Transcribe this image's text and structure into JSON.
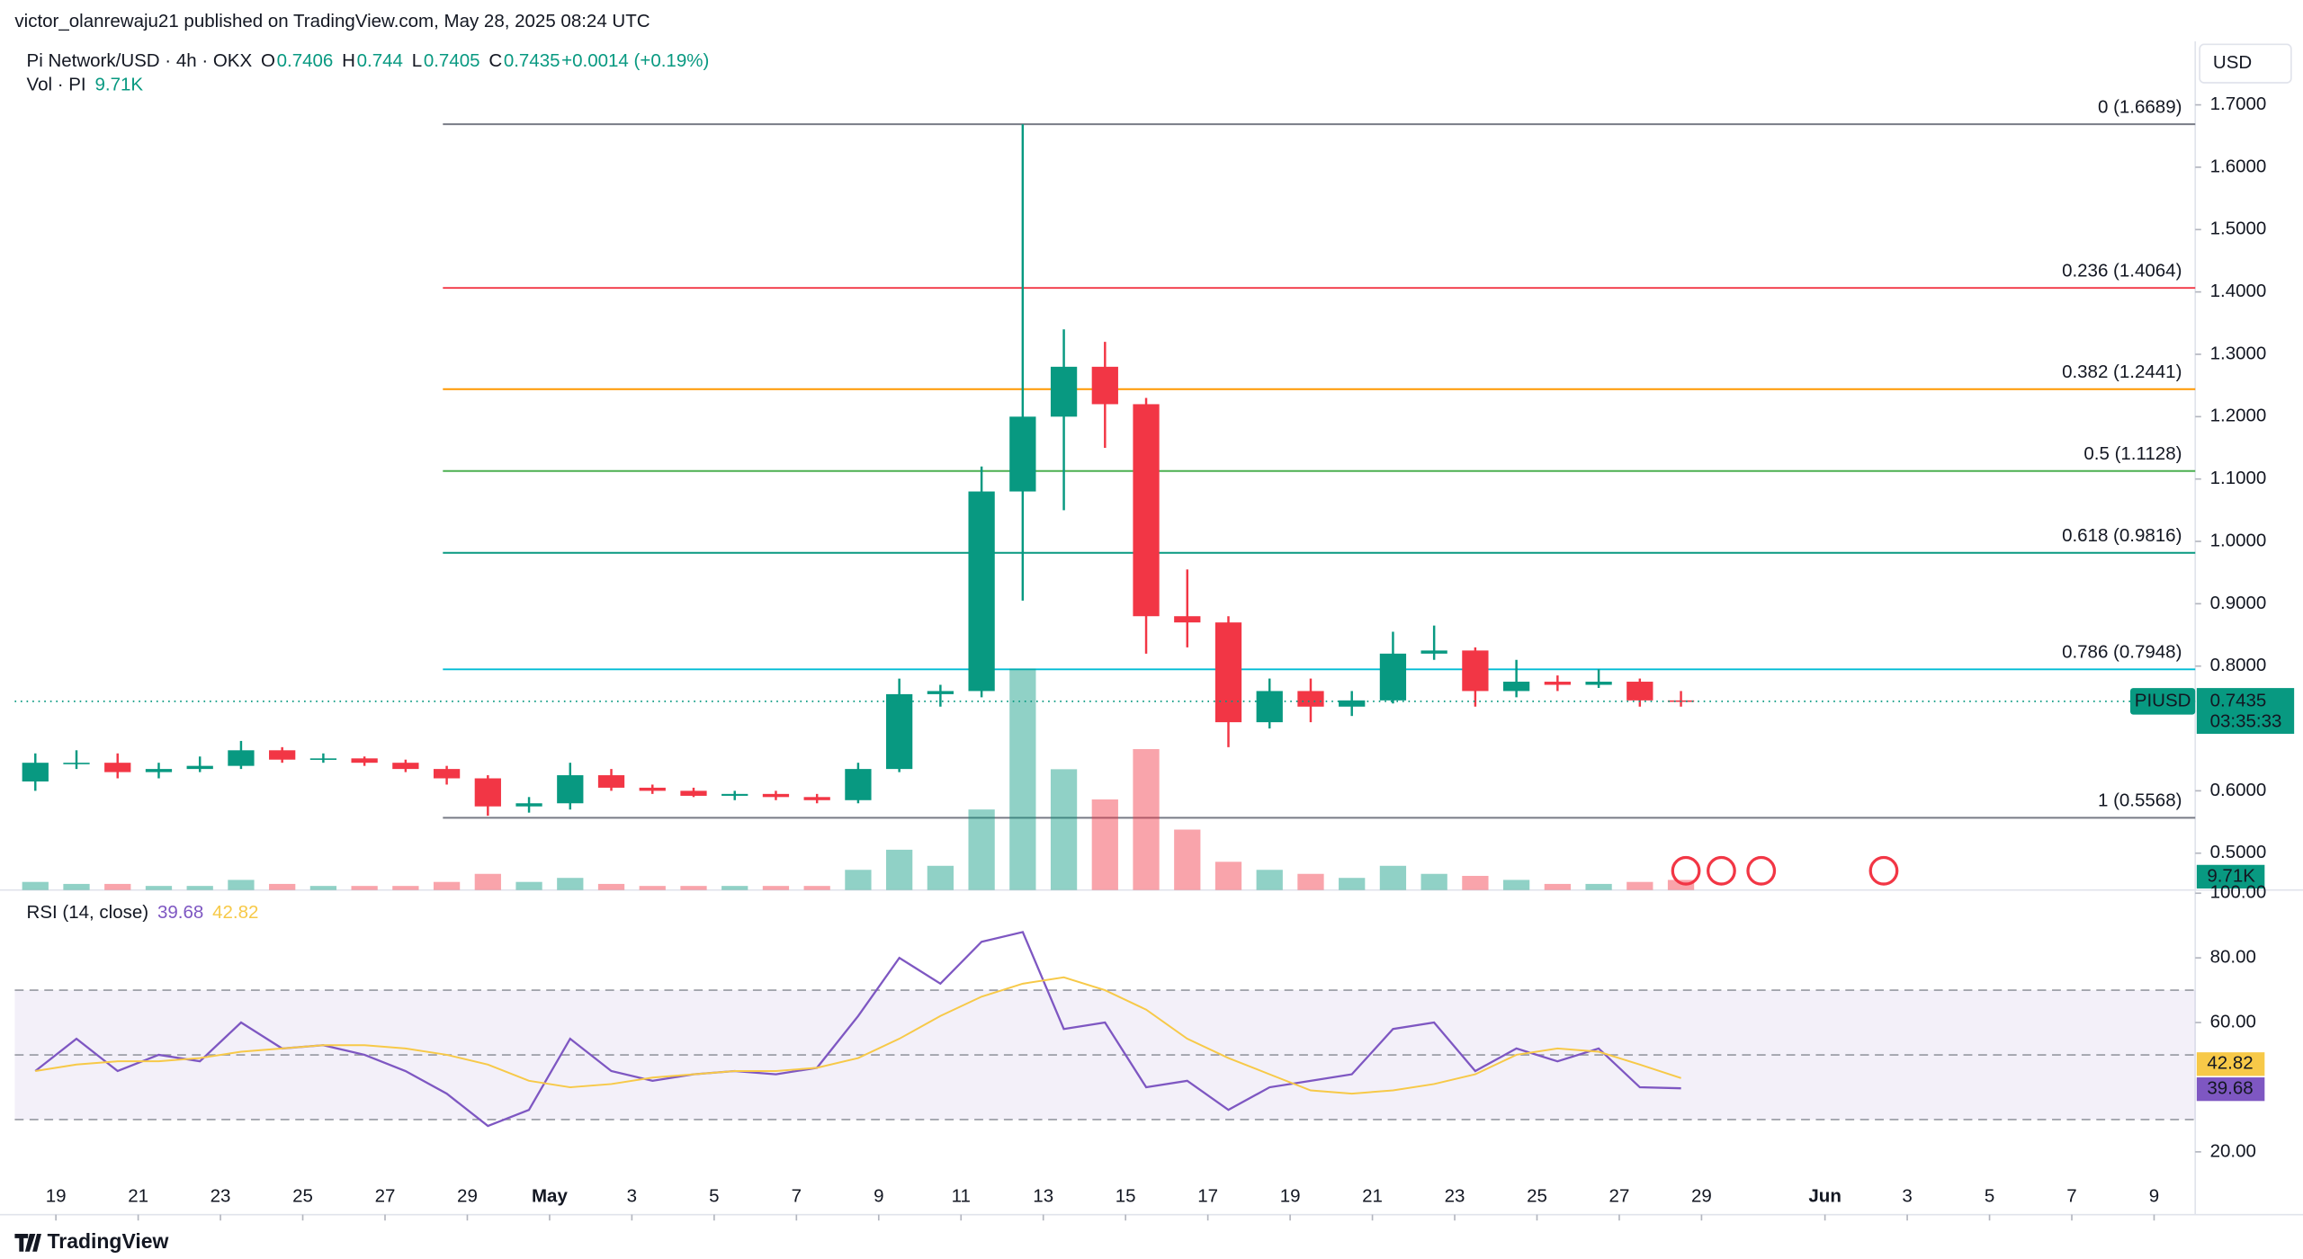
{
  "header": {
    "byline": "victor_olanrewaju21 published on TradingView.com, May 28, 2025 08:24 UTC",
    "currency": "USD",
    "brand": "TradingView"
  },
  "chart_data": [
    {
      "type": "candlestick",
      "legend": {
        "symbol": "Pi Network/USD · 4h · OKX",
        "open_label": "O",
        "open": 0.7406,
        "high_label": "H",
        "high": 0.744,
        "low_label": "L",
        "low": 0.7405,
        "close_label": "C",
        "close": 0.7435,
        "change": "+0.0014 (+0.19%)",
        "volume_label": "Vol · PI",
        "volume_value": "9.71K"
      },
      "x": [
        "2025-04-18",
        "2025-04-19",
        "2025-04-20",
        "2025-04-21",
        "2025-04-22",
        "2025-04-23",
        "2025-04-24",
        "2025-04-25",
        "2025-04-26",
        "2025-04-27",
        "2025-04-28",
        "2025-04-29",
        "2025-04-30",
        "2025-05-01",
        "2025-05-02",
        "2025-05-03",
        "2025-05-04",
        "2025-05-05",
        "2025-05-06",
        "2025-05-07",
        "2025-05-08",
        "2025-05-09",
        "2025-05-10",
        "2025-05-11",
        "2025-05-12",
        "2025-05-13",
        "2025-05-14",
        "2025-05-15",
        "2025-05-16",
        "2025-05-17",
        "2025-05-18",
        "2025-05-19",
        "2025-05-20",
        "2025-05-21",
        "2025-05-22",
        "2025-05-23",
        "2025-05-24",
        "2025-05-25",
        "2025-05-26",
        "2025-05-27",
        "2025-05-28"
      ],
      "open": [
        0.615,
        0.645,
        0.645,
        0.63,
        0.635,
        0.64,
        0.665,
        0.65,
        0.652,
        0.645,
        0.635,
        0.62,
        0.575,
        0.58,
        0.625,
        0.605,
        0.6,
        0.592,
        0.595,
        0.59,
        0.585,
        0.635,
        0.755,
        0.76,
        1.08,
        1.2,
        1.28,
        1.22,
        0.88,
        0.87,
        0.71,
        0.76,
        0.735,
        0.745,
        0.82,
        0.825,
        0.76,
        0.775,
        0.77,
        0.775,
        0.745
      ],
      "high": [
        0.66,
        0.665,
        0.66,
        0.645,
        0.655,
        0.68,
        0.67,
        0.66,
        0.655,
        0.65,
        0.64,
        0.625,
        0.59,
        0.645,
        0.635,
        0.61,
        0.605,
        0.6,
        0.6,
        0.595,
        0.645,
        0.78,
        0.77,
        1.12,
        1.6689,
        1.34,
        1.32,
        1.23,
        0.955,
        0.88,
        0.78,
        0.78,
        0.76,
        0.855,
        0.865,
        0.83,
        0.81,
        0.785,
        0.795,
        0.78,
        0.76
      ],
      "low": [
        0.6,
        0.635,
        0.62,
        0.62,
        0.63,
        0.635,
        0.645,
        0.645,
        0.64,
        0.63,
        0.61,
        0.56,
        0.565,
        0.57,
        0.6,
        0.595,
        0.59,
        0.585,
        0.585,
        0.58,
        0.58,
        0.63,
        0.735,
        0.75,
        0.905,
        1.05,
        1.15,
        0.82,
        0.83,
        0.67,
        0.7,
        0.71,
        0.72,
        0.74,
        0.81,
        0.735,
        0.75,
        0.76,
        0.765,
        0.735,
        0.735
      ],
      "close": [
        0.645,
        0.645,
        0.63,
        0.635,
        0.64,
        0.665,
        0.65,
        0.652,
        0.645,
        0.635,
        0.62,
        0.575,
        0.58,
        0.625,
        0.605,
        0.6,
        0.592,
        0.595,
        0.59,
        0.585,
        0.635,
        0.755,
        0.76,
        1.08,
        1.2,
        1.28,
        1.22,
        0.88,
        0.87,
        0.71,
        0.76,
        0.735,
        0.745,
        0.82,
        0.825,
        0.76,
        0.775,
        0.77,
        0.775,
        0.745,
        0.7435
      ],
      "volume": [
        4,
        3,
        3,
        2,
        2,
        5,
        3,
        2,
        2,
        2,
        4,
        8,
        4,
        6,
        3,
        2,
        2,
        2,
        2,
        2,
        10,
        20,
        12,
        40,
        110,
        60,
        45,
        70,
        30,
        14,
        10,
        8,
        6,
        12,
        8,
        7,
        5,
        3,
        3,
        4,
        5
      ],
      "up_color": "#089981",
      "down_color": "#f23645",
      "xlim": [
        "2025-04-18",
        "2025-06-10"
      ],
      "xticks": [
        {
          "value": "2025-04-19",
          "label": "19"
        },
        {
          "value": "2025-04-21",
          "label": "21"
        },
        {
          "value": "2025-04-23",
          "label": "23"
        },
        {
          "value": "2025-04-25",
          "label": "25"
        },
        {
          "value": "2025-04-27",
          "label": "27"
        },
        {
          "value": "2025-04-29",
          "label": "29"
        },
        {
          "value": "2025-05-01",
          "label": "May"
        },
        {
          "value": "2025-05-03",
          "label": "3"
        },
        {
          "value": "2025-05-05",
          "label": "5"
        },
        {
          "value": "2025-05-07",
          "label": "7"
        },
        {
          "value": "2025-05-09",
          "label": "9"
        },
        {
          "value": "2025-05-11",
          "label": "11"
        },
        {
          "value": "2025-05-13",
          "label": "13"
        },
        {
          "value": "2025-05-15",
          "label": "15"
        },
        {
          "value": "2025-05-17",
          "label": "17"
        },
        {
          "value": "2025-05-19",
          "label": "19"
        },
        {
          "value": "2025-05-21",
          "label": "21"
        },
        {
          "value": "2025-05-23",
          "label": "23"
        },
        {
          "value": "2025-05-25",
          "label": "25"
        },
        {
          "value": "2025-05-27",
          "label": "27"
        },
        {
          "value": "2025-05-29",
          "label": "29"
        },
        {
          "value": "2025-06-01",
          "label": "Jun"
        },
        {
          "value": "2025-06-03",
          "label": "3"
        },
        {
          "value": "2025-06-05",
          "label": "5"
        },
        {
          "value": "2025-06-07",
          "label": "7"
        },
        {
          "value": "2025-06-09",
          "label": "9"
        }
      ],
      "ylim": [
        0.441,
        1.797
      ],
      "yticks": [
        {
          "value": 0.5,
          "label": "0.5000"
        },
        {
          "value": 0.6,
          "label": "0.6000"
        },
        {
          "value": 0.8,
          "label": "0.8000"
        },
        {
          "value": 0.9,
          "label": "0.9000"
        },
        {
          "value": 1.0,
          "label": "1.0000"
        },
        {
          "value": 1.1,
          "label": "1.1000"
        },
        {
          "value": 1.2,
          "label": "1.2000"
        },
        {
          "value": 1.3,
          "label": "1.3000"
        },
        {
          "value": 1.4,
          "label": "1.4000"
        },
        {
          "value": 1.5,
          "label": "1.5000"
        },
        {
          "value": 1.6,
          "label": "1.6000"
        },
        {
          "value": 1.7,
          "label": "1.7000"
        }
      ],
      "fib_levels": [
        {
          "value": 1.6689,
          "label": "0 (1.6689)",
          "color": "#787b86"
        },
        {
          "value": 1.4064,
          "label": "0.236 (1.4064)",
          "color": "#f23645"
        },
        {
          "value": 1.2441,
          "label": "0.382 (1.2441)",
          "color": "#ff9800"
        },
        {
          "value": 1.1128,
          "label": "0.5 (1.1128)",
          "color": "#4caf50"
        },
        {
          "value": 0.9816,
          "label": "0.618 (0.9816)",
          "color": "#089981"
        },
        {
          "value": 0.7948,
          "label": "0.786 (0.7948)",
          "color": "#00bcd4"
        },
        {
          "value": 0.5568,
          "label": "1 (0.5568)",
          "color": "#787b86"
        }
      ],
      "price_tag": "PIUSD",
      "last_price": 0.7435,
      "countdown": "03:35:33",
      "volume_tag": "9.71K"
    },
    {
      "type": "line",
      "title": "RSI (14, close)",
      "x": [
        "2025-04-18",
        "2025-04-19",
        "2025-04-20",
        "2025-04-21",
        "2025-04-22",
        "2025-04-23",
        "2025-04-24",
        "2025-04-25",
        "2025-04-26",
        "2025-04-27",
        "2025-04-28",
        "2025-04-29",
        "2025-04-30",
        "2025-05-01",
        "2025-05-02",
        "2025-05-03",
        "2025-05-04",
        "2025-05-05",
        "2025-05-06",
        "2025-05-07",
        "2025-05-08",
        "2025-05-09",
        "2025-05-10",
        "2025-05-11",
        "2025-05-12",
        "2025-05-13",
        "2025-05-14",
        "2025-05-15",
        "2025-05-16",
        "2025-05-17",
        "2025-05-18",
        "2025-05-19",
        "2025-05-20",
        "2025-05-21",
        "2025-05-22",
        "2025-05-23",
        "2025-05-24",
        "2025-05-25",
        "2025-05-26",
        "2025-05-27",
        "2025-05-28"
      ],
      "series": [
        {
          "name": "RSI",
          "color": "#7e57c2",
          "values": [
            45,
            55,
            45,
            50,
            48,
            60,
            52,
            53,
            50,
            45,
            38,
            28,
            33,
            55,
            45,
            42,
            44,
            45,
            44,
            46,
            62,
            80,
            72,
            85,
            88,
            58,
            60,
            40,
            42,
            33,
            40,
            42,
            44,
            58,
            60,
            45,
            52,
            48,
            52,
            40,
            39.68
          ]
        },
        {
          "name": "RSI-based MA",
          "color": "#f7c948",
          "values": [
            45,
            47,
            48,
            48,
            49,
            51,
            52,
            53,
            53,
            52,
            50,
            47,
            42,
            40,
            41,
            43,
            44,
            45,
            45,
            46,
            49,
            55,
            62,
            68,
            72,
            74,
            70,
            64,
            55,
            49,
            44,
            39,
            38,
            39,
            41,
            44,
            50,
            52,
            51,
            47,
            42.82
          ]
        }
      ],
      "ylim": [
        12,
        101
      ],
      "yticks": [
        {
          "value": 100,
          "label": "100.00"
        },
        {
          "value": 80,
          "label": "80.00"
        },
        {
          "value": 60,
          "label": "60.00"
        },
        {
          "value": 20,
          "label": "20.00"
        }
      ],
      "upper_band": 70,
      "middle_band": 50,
      "lower_band": 30,
      "value_labels": [
        "39.68",
        "42.82"
      ]
    }
  ]
}
